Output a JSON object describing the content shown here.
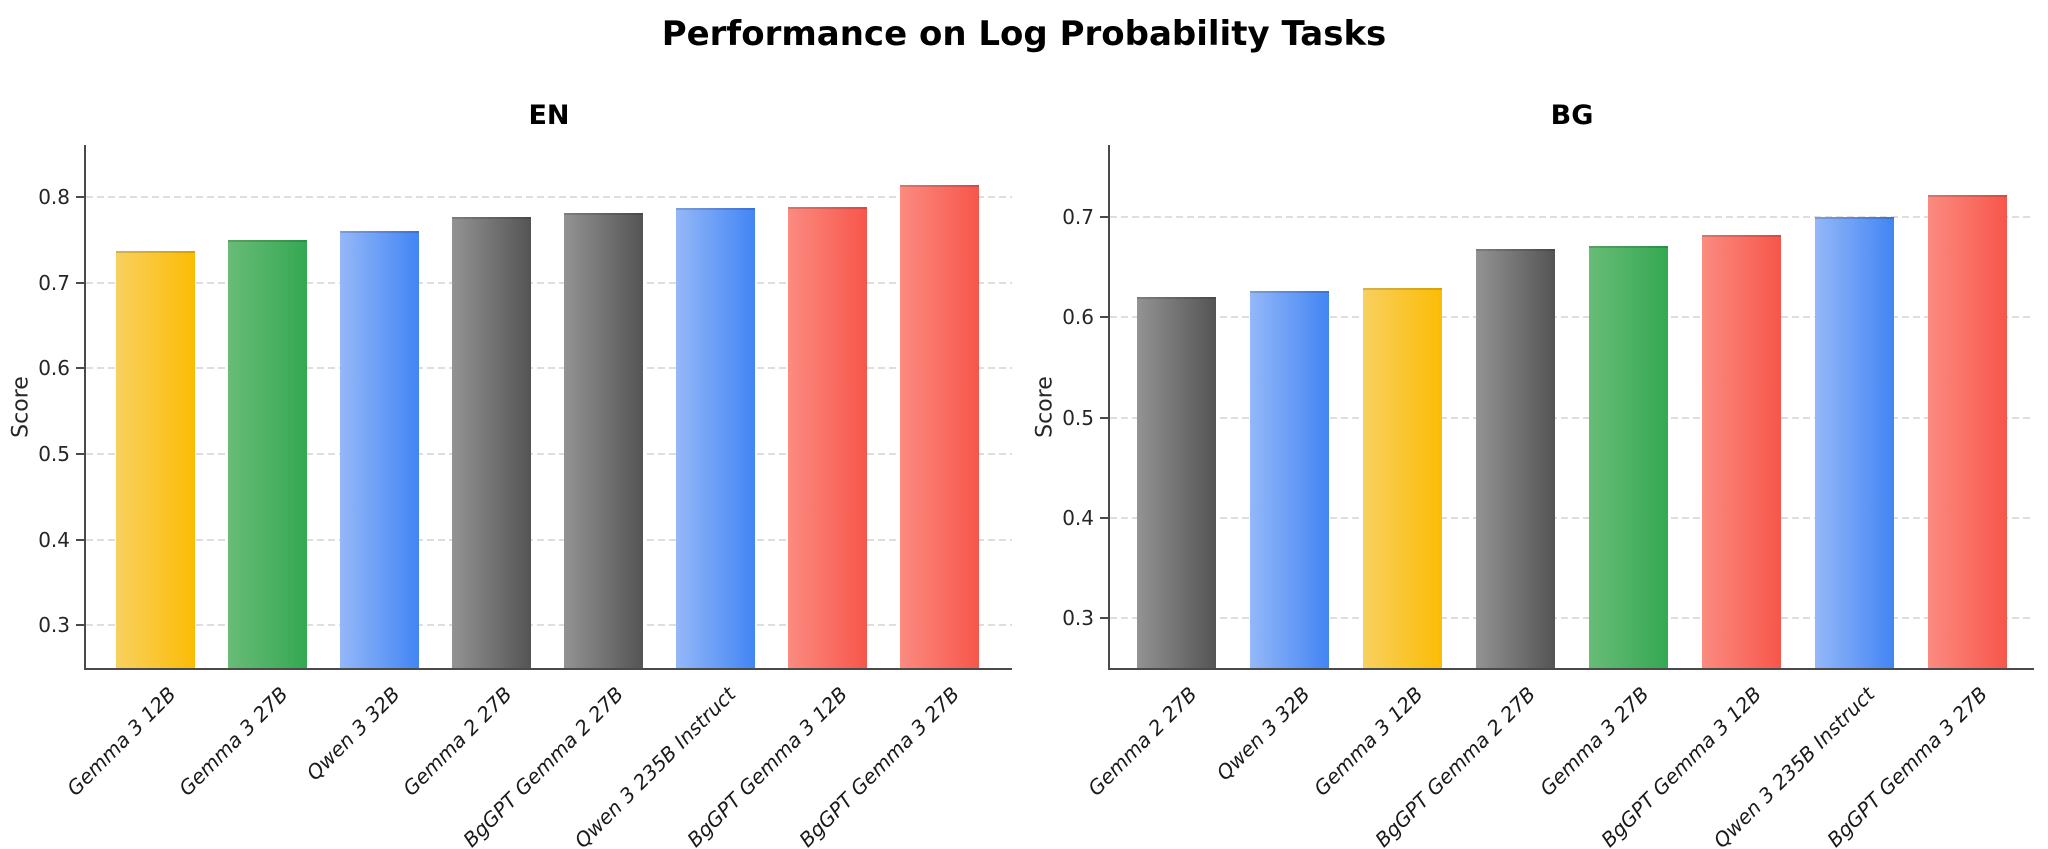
{
  "figure": {
    "title": "Performance on Log Probability Tasks"
  },
  "chart_data": [
    {
      "type": "bar",
      "title": "EN",
      "ylabel": "Score",
      "categories": [
        "Gemma 3 12B",
        "Gemma 3 27B",
        "Qwen 3 32B",
        "Gemma 2 27B",
        "BgGPT Gemma 2 27B",
        "Qwen 3 235B Instruct",
        "BgGPT Gemma 3 12B",
        "BgGPT Gemma 3 27B"
      ],
      "values": [
        0.737,
        0.75,
        0.761,
        0.777,
        0.782,
        0.787,
        0.788,
        0.814
      ],
      "bar_colors": [
        "yellow",
        "green",
        "blue",
        "gray",
        "gray",
        "blue",
        "red",
        "red"
      ],
      "yticks": [
        0.3,
        0.4,
        0.5,
        0.6,
        0.7,
        0.8
      ],
      "ytick_labels": [
        "0.3",
        "0.4",
        "0.5",
        "0.6",
        "0.7",
        "0.8"
      ],
      "ylim": [
        0.25,
        0.861
      ],
      "grid": "horizontal-dashed",
      "legend_position": "none"
    },
    {
      "type": "bar",
      "title": "BG",
      "ylabel": "Score",
      "categories": [
        "Gemma 2 27B",
        "Qwen 3 32B",
        "Gemma 3 12B",
        "BgGPT Gemma 2 27B",
        "Gemma 3 27B",
        "BgGPT Gemma 3 12B",
        "Qwen 3 235B Instruct",
        "BgGPT Gemma 3 27B"
      ],
      "values": [
        0.62,
        0.626,
        0.629,
        0.668,
        0.671,
        0.682,
        0.7,
        0.722
      ],
      "bar_colors": [
        "gray",
        "blue",
        "yellow",
        "gray",
        "green",
        "red",
        "blue",
        "red"
      ],
      "yticks": [
        0.3,
        0.4,
        0.5,
        0.6,
        0.7
      ],
      "ytick_labels": [
        "0.3",
        "0.4",
        "0.5",
        "0.6",
        "0.7"
      ],
      "ylim": [
        0.25,
        0.772
      ],
      "grid": "horizontal-dashed",
      "legend_position": "none"
    }
  ],
  "palette": {
    "yellow": {
      "start": "#f8d05f",
      "end": "#fbbc05"
    },
    "green": {
      "start": "#68bc76",
      "end": "#34a853"
    },
    "blue": {
      "start": "#94b8f8",
      "end": "#4285f4"
    },
    "gray": {
      "start": "#939393",
      "end": "#545454"
    },
    "red": {
      "start": "#fb8b80",
      "end": "#f7564a"
    },
    "axis_color": "#4a4a4a",
    "grid_color": "#dedede",
    "text_color": "#262626"
  }
}
